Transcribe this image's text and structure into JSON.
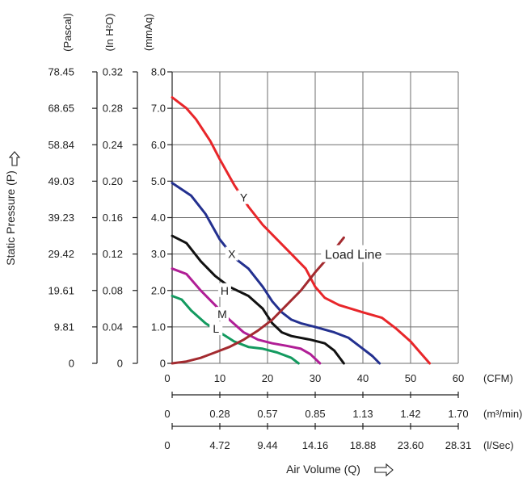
{
  "chart_data": {
    "type": "line",
    "ylabel": "Static Pressure (P)",
    "xlabel": "Air Volume (Q)",
    "xlim": [
      0,
      60
    ],
    "ylim": [
      0,
      8
    ],
    "grid": true,
    "x_axes": [
      {
        "id": "cfm",
        "unit": "(CFM)",
        "ticks": [
          "0",
          "10",
          "20",
          "30",
          "40",
          "50",
          "60"
        ]
      },
      {
        "id": "m3min",
        "unit": "(m³/min)",
        "ticks": [
          "0",
          "0.28",
          "0.57",
          "0.85",
          "1.13",
          "1.42",
          "1.70"
        ]
      },
      {
        "id": "lsec",
        "unit": "(l/Sec)",
        "ticks": [
          "0",
          "4.72",
          "9.44",
          "14.16",
          "18.88",
          "23.60",
          "28.31"
        ]
      }
    ],
    "y_axes": [
      {
        "id": "pascal",
        "unit": "(Pascal)",
        "ticks": [
          "0",
          "9.81",
          "19.61",
          "29.42",
          "39.23",
          "49.03",
          "58.84",
          "68.65",
          "78.45"
        ]
      },
      {
        "id": "inh2o",
        "unit": "(In H²O)",
        "ticks": [
          "0",
          "0.04",
          "0.08",
          "0.12",
          "0.16",
          "0.20",
          "0.24",
          "0.28",
          "0.32"
        ]
      },
      {
        "id": "mmaq",
        "unit": "(mmAq)",
        "ticks": [
          "0",
          "1.0",
          "2.0",
          "3.0",
          "4.0",
          "5.0",
          "6.0",
          "7.0",
          "8.0"
        ]
      }
    ],
    "series": [
      {
        "name": "Y",
        "color": "#e8262a",
        "label_at": [
          15,
          4.55
        ],
        "points": [
          [
            0,
            7.3
          ],
          [
            3,
            7.0
          ],
          [
            5,
            6.7
          ],
          [
            8,
            6.1
          ],
          [
            10,
            5.6
          ],
          [
            13,
            4.9
          ],
          [
            16,
            4.3
          ],
          [
            19,
            3.8
          ],
          [
            22,
            3.4
          ],
          [
            25,
            3.0
          ],
          [
            28,
            2.6
          ],
          [
            30,
            2.1
          ],
          [
            32,
            1.8
          ],
          [
            35,
            1.6
          ],
          [
            40,
            1.4
          ],
          [
            44,
            1.25
          ],
          [
            47,
            0.95
          ],
          [
            50,
            0.6
          ],
          [
            52,
            0.3
          ],
          [
            54,
            0
          ]
        ]
      },
      {
        "name": "X",
        "color": "#23308f",
        "label_at": [
          12.5,
          3.0
        ],
        "points": [
          [
            0,
            4.95
          ],
          [
            4,
            4.6
          ],
          [
            7,
            4.1
          ],
          [
            10,
            3.4
          ],
          [
            13,
            2.9
          ],
          [
            16,
            2.6
          ],
          [
            19,
            2.1
          ],
          [
            21,
            1.7
          ],
          [
            23,
            1.4
          ],
          [
            25,
            1.2
          ],
          [
            27,
            1.1
          ],
          [
            30,
            1.0
          ],
          [
            34,
            0.85
          ],
          [
            37,
            0.7
          ],
          [
            40,
            0.4
          ],
          [
            42,
            0.2
          ],
          [
            43.5,
            0
          ]
        ]
      },
      {
        "name": "H",
        "color": "#111111",
        "label_at": [
          11,
          2.0
        ],
        "points": [
          [
            0,
            3.5
          ],
          [
            3,
            3.3
          ],
          [
            6,
            2.8
          ],
          [
            9,
            2.4
          ],
          [
            12,
            2.1
          ],
          [
            16,
            1.85
          ],
          [
            19,
            1.5
          ],
          [
            21,
            1.1
          ],
          [
            23,
            0.85
          ],
          [
            25,
            0.75
          ],
          [
            29,
            0.65
          ],
          [
            32,
            0.55
          ],
          [
            34,
            0.35
          ],
          [
            36,
            0
          ]
        ]
      },
      {
        "name": "M",
        "color": "#b01e96",
        "label_at": [
          10.5,
          1.35
        ],
        "points": [
          [
            0,
            2.6
          ],
          [
            3,
            2.45
          ],
          [
            6,
            2.0
          ],
          [
            9,
            1.6
          ],
          [
            12,
            1.2
          ],
          [
            15,
            0.85
          ],
          [
            18,
            0.65
          ],
          [
            21,
            0.55
          ],
          [
            24,
            0.48
          ],
          [
            27,
            0.4
          ],
          [
            29,
            0.25
          ],
          [
            31,
            0
          ]
        ]
      },
      {
        "name": "L",
        "color": "#139a5f",
        "label_at": [
          9.2,
          0.95
        ],
        "points": [
          [
            0,
            1.85
          ],
          [
            2,
            1.75
          ],
          [
            4,
            1.45
          ],
          [
            7,
            1.1
          ],
          [
            10,
            0.85
          ],
          [
            13,
            0.6
          ],
          [
            16,
            0.45
          ],
          [
            19,
            0.4
          ],
          [
            22,
            0.3
          ],
          [
            25,
            0.15
          ],
          [
            26.5,
            0
          ]
        ]
      }
    ],
    "load_line": {
      "name": "Load Line",
      "color": "#a32a2f",
      "label_at": [
        38,
        3.0
      ],
      "points": [
        [
          0,
          0
        ],
        [
          3,
          0.05
        ],
        [
          6,
          0.15
        ],
        [
          9,
          0.3
        ],
        [
          12,
          0.45
        ],
        [
          15,
          0.65
        ],
        [
          18,
          0.9
        ],
        [
          21,
          1.2
        ],
        [
          24,
          1.6
        ],
        [
          27,
          2.0
        ],
        [
          30,
          2.5
        ],
        [
          33,
          2.95
        ],
        [
          36,
          3.45
        ]
      ]
    }
  }
}
